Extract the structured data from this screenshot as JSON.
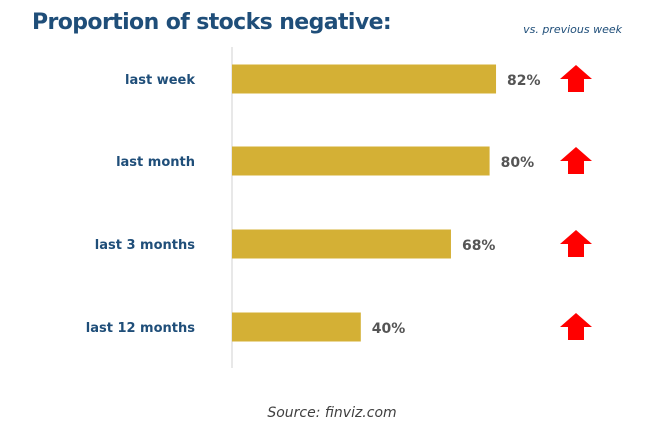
{
  "chart_data": {
    "type": "bar",
    "orientation": "horizontal",
    "title": "Proportion of stocks negative:",
    "comparison_note": "vs. previous week",
    "categories": [
      "last week",
      "last month",
      "last 3 months",
      "last 12 months"
    ],
    "values": [
      82,
      80,
      68,
      40
    ],
    "value_labels": [
      "82%",
      "80%",
      "68%",
      "40%"
    ],
    "change_vs_previous_week": [
      "up",
      "up",
      "up",
      "up"
    ],
    "xlim": [
      0,
      100
    ],
    "grid": false,
    "legend": "none",
    "source": "Source: finviz.com"
  },
  "colors": {
    "bar": "#d4b035",
    "title": "#1f4e79",
    "category_label": "#1f4e79",
    "value_label": "#555555",
    "up_arrow": "#ff0000",
    "axis": "#d0d0d0"
  },
  "icons": {
    "trend": "arrow-up-icon"
  }
}
